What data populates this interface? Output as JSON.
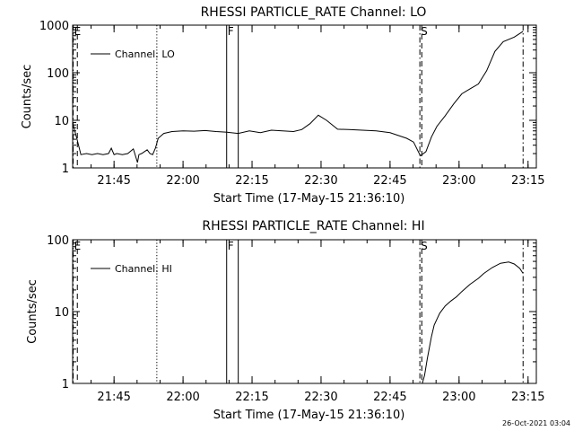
{
  "footer": {
    "timestamp": "26-Oct-2021 03:04"
  },
  "chart_data": [
    {
      "type": "line",
      "title": "RHESSI PARTICLE_RATE Channel: LO",
      "xlabel": "Start Time (17-May-15 21:36:10)",
      "ylabel": "Counts/sec",
      "yscale": "log",
      "ylim": [
        1,
        1000
      ],
      "xlim_minutes": [
        21.6,
        23.28
      ],
      "yticks": [
        {
          "value": 1,
          "label": "1"
        },
        {
          "value": 10,
          "label": "10"
        },
        {
          "value": 100,
          "label": "100"
        },
        {
          "value": 1000,
          "label": "1000"
        }
      ],
      "xticks": [
        {
          "value": 21.75,
          "label": "21:45"
        },
        {
          "value": 22.0,
          "label": "22:00"
        },
        {
          "value": 22.25,
          "label": "22:15"
        },
        {
          "value": 22.5,
          "label": "22:30"
        },
        {
          "value": 22.75,
          "label": "22:45"
        },
        {
          "value": 23.0,
          "label": "23:00"
        },
        {
          "value": 23.25,
          "label": "23:15"
        }
      ],
      "legend": "top-left",
      "series": [
        {
          "name": "Channel: LO",
          "x": [
            21.602,
            21.617,
            21.63,
            21.65,
            21.67,
            21.69,
            21.71,
            21.73,
            21.74,
            21.75,
            21.76,
            21.78,
            21.8,
            21.82,
            21.835,
            21.84,
            21.85,
            21.87,
            21.88,
            21.89,
            21.9,
            21.91,
            21.93,
            21.96,
            22.0,
            22.04,
            22.08,
            22.12,
            22.16,
            22.2,
            22.24,
            22.28,
            22.32,
            22.36,
            22.4,
            22.43,
            22.46,
            22.49,
            22.52,
            22.56,
            22.6,
            22.65,
            22.7,
            22.75,
            22.78,
            22.81,
            22.835,
            22.86,
            22.88,
            22.9,
            22.92,
            22.95,
            22.98,
            23.01,
            23.04,
            23.07,
            23.1,
            23.13,
            23.16,
            23.2,
            23.232
          ],
          "y": [
            8,
            3.8,
            1.9,
            2.0,
            1.9,
            2.0,
            1.9,
            2.0,
            2.6,
            1.9,
            2.0,
            1.9,
            2.0,
            2.5,
            1.3,
            1.9,
            2.0,
            2.4,
            2.0,
            1.9,
            2.6,
            4.2,
            5.3,
            5.8,
            6.0,
            5.9,
            6.1,
            5.8,
            5.6,
            5.3,
            6.0,
            5.5,
            6.2,
            6.0,
            5.8,
            6.4,
            8.5,
            12.8,
            10.0,
            6.5,
            6.4,
            6.2,
            6.0,
            5.5,
            4.8,
            4.2,
            3.5,
            1.8,
            2.2,
            4.5,
            7.5,
            12.5,
            22,
            36,
            46,
            58,
            110,
            280,
            450,
            560,
            740
          ]
        }
      ],
      "markers": [
        {
          "x": 21.602,
          "style": "dashdot",
          "label": "E"
        },
        {
          "x": 21.617,
          "style": "dashed",
          "label": ""
        },
        {
          "x": 21.905,
          "style": "dotted",
          "label": ""
        },
        {
          "x": 22.158,
          "style": "solid",
          "label": "F"
        },
        {
          "x": 22.2,
          "style": "solid",
          "label": ""
        },
        {
          "x": 22.858,
          "style": "dashdot",
          "label": "S"
        },
        {
          "x": 22.865,
          "style": "dashed",
          "label": ""
        },
        {
          "x": 23.232,
          "style": "dashdot",
          "label": ""
        }
      ]
    },
    {
      "type": "line",
      "title": "RHESSI PARTICLE_RATE Channel: HI",
      "xlabel": "Start Time (17-May-15 21:36:10)",
      "ylabel": "Counts/sec",
      "yscale": "log",
      "ylim": [
        1,
        100
      ],
      "xlim_minutes": [
        21.6,
        23.28
      ],
      "yticks": [
        {
          "value": 1,
          "label": "1"
        },
        {
          "value": 10,
          "label": "10"
        },
        {
          "value": 100,
          "label": "100"
        }
      ],
      "xticks": [
        {
          "value": 21.75,
          "label": "21:45"
        },
        {
          "value": 22.0,
          "label": "22:00"
        },
        {
          "value": 22.25,
          "label": "22:15"
        },
        {
          "value": 22.5,
          "label": "22:30"
        },
        {
          "value": 22.75,
          "label": "22:45"
        },
        {
          "value": 23.0,
          "label": "23:00"
        },
        {
          "value": 23.25,
          "label": "23:15"
        }
      ],
      "legend": "top-left",
      "series": [
        {
          "name": "Channel: HI",
          "x": [
            22.867,
            22.875,
            22.885,
            22.9,
            22.91,
            22.93,
            22.95,
            22.97,
            22.99,
            23.01,
            23.04,
            23.07,
            23.09,
            23.12,
            23.15,
            23.18,
            23.2,
            23.22,
            23.232
          ],
          "y": [
            1,
            1.3,
            2.2,
            4.5,
            6.5,
            9.5,
            12,
            14,
            16,
            19,
            24,
            29,
            34,
            41,
            47,
            49,
            46,
            40,
            34
          ]
        }
      ],
      "markers": [
        {
          "x": 21.602,
          "style": "dashdot",
          "label": "E"
        },
        {
          "x": 21.617,
          "style": "dashed",
          "label": ""
        },
        {
          "x": 21.905,
          "style": "dotted",
          "label": ""
        },
        {
          "x": 22.158,
          "style": "solid",
          "label": "F"
        },
        {
          "x": 22.2,
          "style": "solid",
          "label": ""
        },
        {
          "x": 22.858,
          "style": "dashdot",
          "label": "S"
        },
        {
          "x": 22.865,
          "style": "dashed",
          "label": ""
        },
        {
          "x": 23.232,
          "style": "dashdot",
          "label": ""
        }
      ]
    }
  ]
}
